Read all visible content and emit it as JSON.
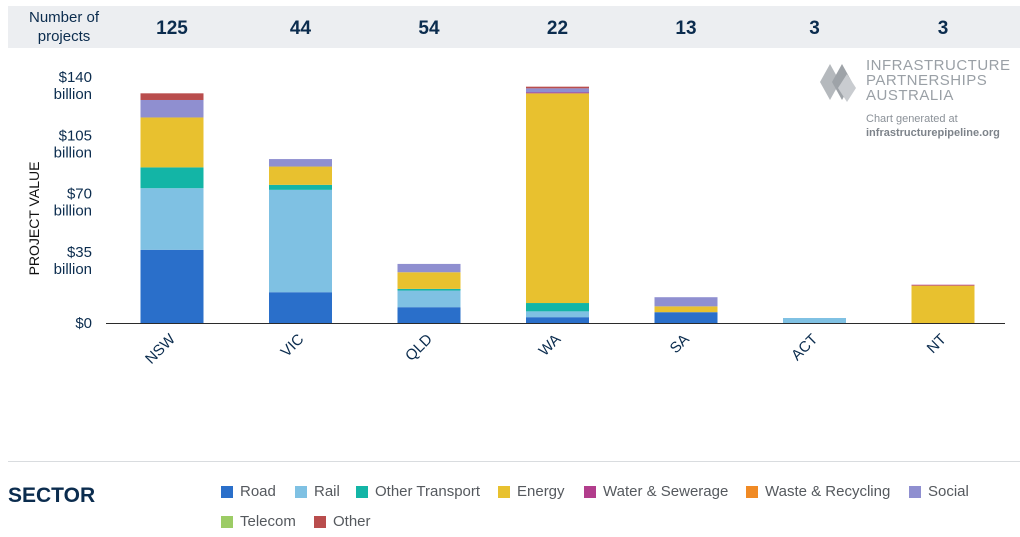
{
  "header": {
    "label": "Number of projects",
    "counts": [
      "125",
      "44",
      "54",
      "22",
      "13",
      "3",
      "3"
    ]
  },
  "logo": {
    "lines": [
      "INFRASTRUCTURE",
      "PARTNERSHIPS",
      "AUSTRALIA"
    ],
    "generated_label": "Chart generated at",
    "site": "infrastructurepipeline.org",
    "icon": "ipa-diamond-logo-icon"
  },
  "legend": {
    "title": "SECTOR",
    "items": [
      {
        "name": "Road",
        "color": "#2a6fca"
      },
      {
        "name": "Rail",
        "color": "#7fc1e3"
      },
      {
        "name": "Other Transport",
        "color": "#13b5a6"
      },
      {
        "name": "Energy",
        "color": "#e8c12f"
      },
      {
        "name": "Water & Sewerage",
        "color": "#b23d8c"
      },
      {
        "name": "Waste & Recycling",
        "color": "#f08a24"
      },
      {
        "name": "Social",
        "color": "#8f8fd0"
      },
      {
        "name": "Telecom",
        "color": "#9ccc65"
      },
      {
        "name": "Other",
        "color": "#b94d4d"
      }
    ]
  },
  "chart_data": {
    "type": "bar",
    "stacked": true,
    "ylabel": "PROJECT VALUE",
    "ylim": [
      0,
      140
    ],
    "yticks": [
      {
        "value": 0,
        "label": [
          "$0"
        ]
      },
      {
        "value": 35,
        "label": [
          "$35",
          "billion"
        ]
      },
      {
        "value": 70,
        "label": [
          "$70",
          "billion"
        ]
      },
      {
        "value": 105,
        "label": [
          "$105",
          "billion"
        ]
      },
      {
        "value": 140,
        "label": [
          "$140",
          "billion"
        ]
      }
    ],
    "categories": [
      "NSW",
      "VIC",
      "QLD",
      "WA",
      "SA",
      "ACT",
      "NT"
    ],
    "series": [
      {
        "name": "Road",
        "values": [
          44,
          18.5,
          9.5,
          3.5,
          6.5,
          0,
          0
        ]
      },
      {
        "name": "Rail",
        "values": [
          37,
          61.5,
          10,
          3.5,
          0,
          3,
          0
        ]
      },
      {
        "name": "Other Transport",
        "values": [
          12.5,
          3,
          1,
          5,
          0,
          0,
          0
        ]
      },
      {
        "name": "Energy",
        "values": [
          30,
          11,
          10,
          126,
          3.5,
          0,
          22.5
        ]
      },
      {
        "name": "Water & Sewerage",
        "values": [
          0,
          0,
          0,
          0.5,
          0,
          0,
          0.5
        ]
      },
      {
        "name": "Waste & Recycling",
        "values": [
          0,
          0,
          0,
          0,
          0,
          0,
          0
        ]
      },
      {
        "name": "Social",
        "values": [
          10.5,
          4.5,
          5,
          2.5,
          5.5,
          0,
          0
        ]
      },
      {
        "name": "Telecom",
        "values": [
          0,
          0,
          0,
          0,
          0,
          0,
          0
        ]
      },
      {
        "name": "Other",
        "values": [
          4,
          0,
          0,
          1,
          0,
          0,
          0
        ]
      }
    ]
  }
}
